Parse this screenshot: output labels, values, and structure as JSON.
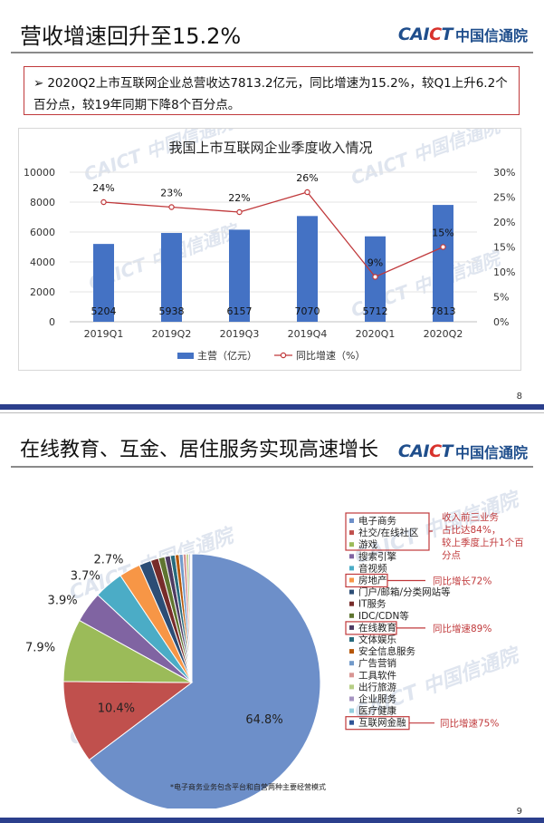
{
  "slide1": {
    "title": "营收增速回升至15.2%",
    "logo_en_a": "CAI",
    "logo_en_b": "C",
    "logo_en_c": "T",
    "logo_cn": "中国信通院",
    "summary_bullet": "➢",
    "summary_text": "2020Q2上市互联网企业总营收达7813.2亿元，同比增速为15.2%，较Q1上升6.2个百分点，较19年同期下降8个百分点。",
    "page_number": "8"
  },
  "slide2": {
    "title": "在线教育、互金、居住服务实现高速增长",
    "logo_en_a": "CAI",
    "logo_en_b": "C",
    "logo_en_c": "T",
    "logo_cn": "中国信通院",
    "footnote": "*电子商务业务包含平台和自营两种主要经营模式",
    "page_number": "9",
    "annotations": [
      {
        "text": "收入前三业务占比达84%，较上季度上升1个百分点"
      },
      {
        "text": "同比增长72%"
      },
      {
        "text": "同比增速89%"
      },
      {
        "text": "同比增速75%"
      }
    ]
  },
  "watermark": "CAICT 中国信通院",
  "colors": {
    "bar": "#4472c4",
    "line": "#c0393b",
    "annotation_red": "#c0393b",
    "brand_blue": "#1f4e8c",
    "footer_bar": "#2b3f8c"
  },
  "chart_data": [
    {
      "type": "bar",
      "title": "我国上市互联网企业季度收入情况",
      "categories": [
        "2019Q1",
        "2019Q2",
        "2019Q3",
        "2019Q4",
        "2020Q1",
        "2020Q2"
      ],
      "series": [
        {
          "name": "主营（亿元）",
          "type": "bar",
          "axis": "left",
          "values": [
            5204,
            5938,
            6157,
            7070,
            5712,
            7813
          ],
          "labels": [
            "5204",
            "5938",
            "6157",
            "7070",
            "5712",
            "7813"
          ]
        },
        {
          "name": "同比增速（%）",
          "type": "line",
          "axis": "right",
          "values": [
            24,
            23,
            22,
            26,
            9,
            15
          ],
          "labels": [
            "24%",
            "23%",
            "22%",
            "26%",
            "9%",
            "15%"
          ]
        }
      ],
      "ylim_left": [
        0,
        10000
      ],
      "yticks_left": [
        "0",
        "2000",
        "4000",
        "6000",
        "8000",
        "10000"
      ],
      "ylim_right": [
        0,
        30
      ],
      "yticks_right": [
        "0%",
        "5%",
        "10%",
        "15%",
        "20%",
        "25%",
        "30%"
      ],
      "legend": "bottom"
    },
    {
      "type": "pie",
      "slices": [
        {
          "name": "电子商务",
          "value": 64.8,
          "label": "64.8%",
          "color": "#6d8fc9"
        },
        {
          "name": "社交/在线社区",
          "value": 10.4,
          "label": "10.4%",
          "color": "#c0504d"
        },
        {
          "name": "游戏",
          "value": 7.9,
          "label": "7.9%",
          "color": "#9bbb59"
        },
        {
          "name": "搜索引擎",
          "value": 3.9,
          "label": "3.9%",
          "color": "#8064a2"
        },
        {
          "name": "音视频",
          "value": 3.7,
          "label": "3.7%",
          "color": "#4bacc6"
        },
        {
          "name": "房地产",
          "value": 2.7,
          "label": "2.7%",
          "color": "#f79646"
        },
        {
          "name": "门户/邮箱/分类网站等",
          "value": 1.5,
          "label": "",
          "color": "#2c4d75"
        },
        {
          "name": "IT服务",
          "value": 1.0,
          "label": "",
          "color": "#772c2a"
        },
        {
          "name": "IDC/CDN等",
          "value": 0.8,
          "label": "",
          "color": "#5f7530"
        },
        {
          "name": "在线教育",
          "value": 0.7,
          "label": "",
          "color": "#4d3b62"
        },
        {
          "name": "文体娱乐",
          "value": 0.6,
          "label": "",
          "color": "#276a7c"
        },
        {
          "name": "安全信息服务",
          "value": 0.5,
          "label": "",
          "color": "#b65708"
        },
        {
          "name": "广告营销",
          "value": 0.5,
          "label": "",
          "color": "#729aca"
        },
        {
          "name": "工具软件",
          "value": 0.4,
          "label": "",
          "color": "#d99694"
        },
        {
          "name": "出行旅游",
          "value": 0.3,
          "label": "",
          "color": "#b7ce85"
        },
        {
          "name": "企业服务",
          "value": 0.2,
          "label": "",
          "color": "#a694c1"
        },
        {
          "name": "医疗健康",
          "value": 0.1,
          "label": "",
          "color": "#93cddd"
        },
        {
          "name": "互联网金融",
          "value": 0.1,
          "label": "",
          "color": "#2f5597"
        }
      ],
      "legend": "right"
    }
  ]
}
